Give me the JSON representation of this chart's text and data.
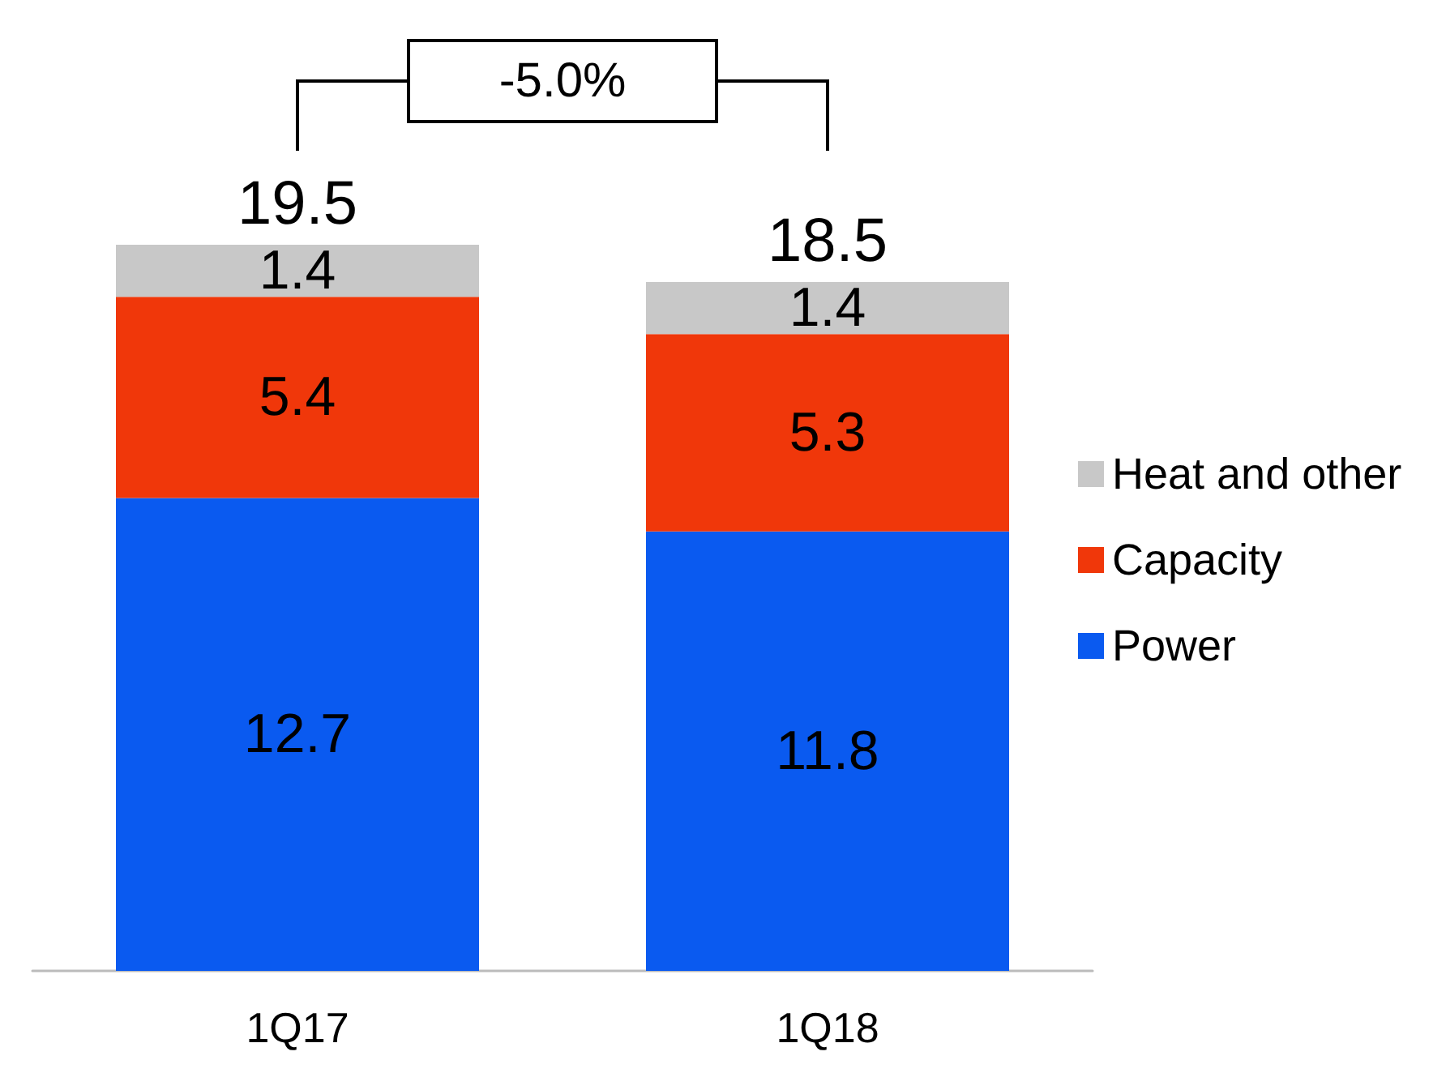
{
  "chart_data": {
    "type": "bar",
    "stacked": true,
    "categories": [
      "1Q17",
      "1Q18"
    ],
    "series": [
      {
        "name": "Power",
        "color": "#0a5af0",
        "values": [
          12.7,
          11.8
        ]
      },
      {
        "name": "Capacity",
        "color": "#f0370a",
        "values": [
          5.4,
          5.3
        ]
      },
      {
        "name": "Heat and other",
        "color": "#c8c8c8",
        "values": [
          1.4,
          1.4
        ]
      }
    ],
    "data_labels": true,
    "totals": [
      "19.5",
      "18.5"
    ],
    "annotations": [
      "-5.0%"
    ],
    "legend": "right"
  }
}
